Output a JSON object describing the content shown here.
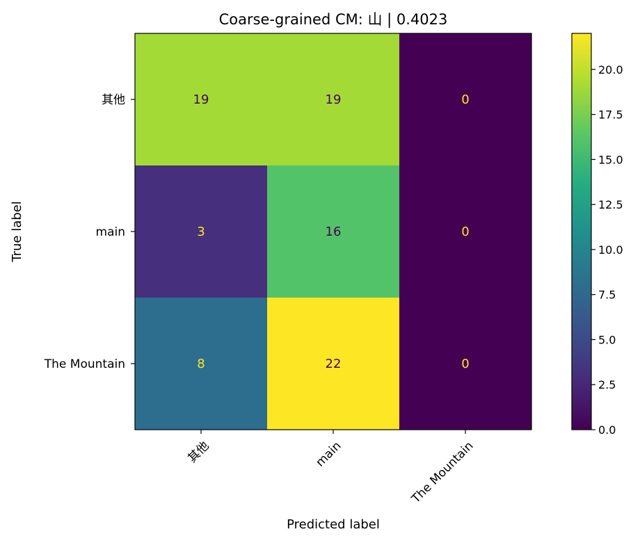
{
  "chart_data": {
    "type": "heatmap",
    "title": "Coarse-grained CM: 山 | 0.4023",
    "xlabel": "Predicted label",
    "ylabel": "True label",
    "x_categories": [
      "其他",
      "main",
      "The Mountain"
    ],
    "y_categories": [
      "其他",
      "main",
      "The Mountain"
    ],
    "matrix": [
      [
        19,
        19,
        0
      ],
      [
        3,
        16,
        0
      ],
      [
        8,
        22,
        0
      ]
    ],
    "colormap": "viridis",
    "colorbar": {
      "vmin": 0,
      "vmax": 22,
      "ticks": [
        0.0,
        2.5,
        5.0,
        7.5,
        10.0,
        12.5,
        15.0,
        17.5,
        20.0
      ],
      "tick_labels": [
        "0.0",
        "2.5",
        "5.0",
        "7.5",
        "10.0",
        "12.5",
        "15.0",
        "17.5",
        "20.0"
      ]
    },
    "text_colors": {
      "dark": "#440154",
      "light": "#fde725"
    }
  }
}
